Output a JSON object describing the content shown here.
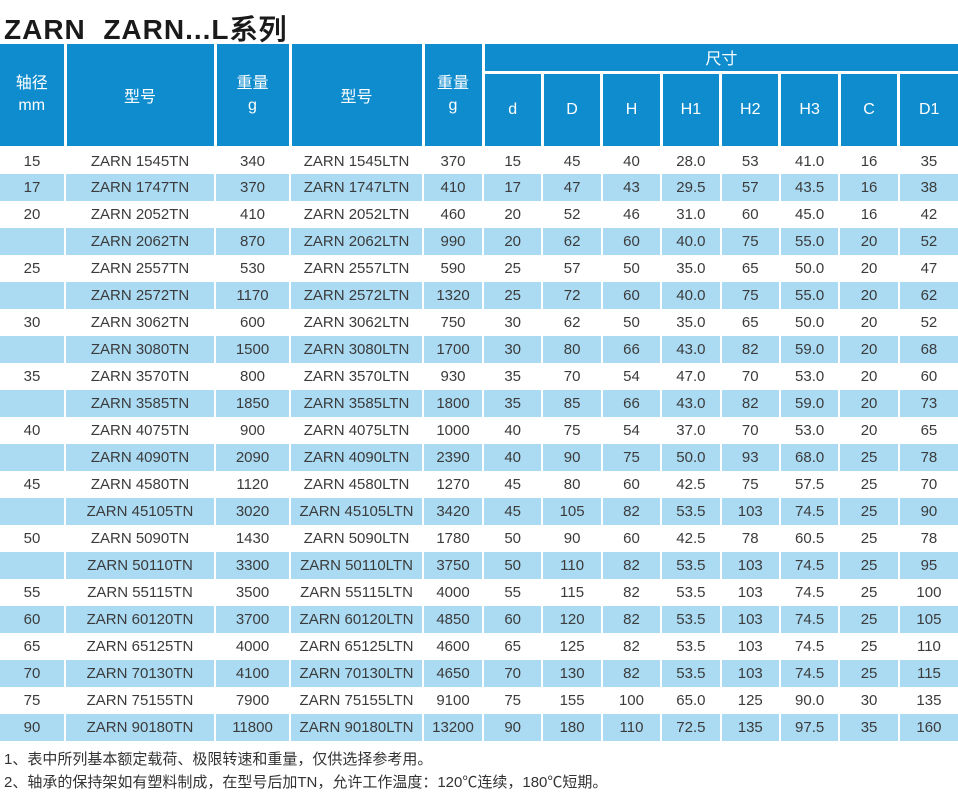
{
  "page": {
    "title": "ZARN  ZARN...L系列"
  },
  "colors": {
    "header_blue": "#0f8cce",
    "stripe_blue": "#abdbf3",
    "row_white": "#ffffff",
    "body_text": "#3b3b3b"
  },
  "table": {
    "headers": {
      "shaft": "轴径",
      "shaft_unit": "mm",
      "model_tn": "型号",
      "weight_tn": "重量",
      "weight_tn_unit": "g",
      "model_ltn": "型号",
      "weight_ltn": "重量",
      "weight_ltn_unit": "g",
      "dims_group": "尺寸",
      "dims": [
        "d",
        "D",
        "H",
        "H1",
        "H2",
        "H3",
        "C",
        "D1"
      ]
    },
    "column_keys": [
      "shaft-mm",
      "model-tn",
      "weight-tn",
      "model-ltn",
      "weight-ltn",
      "dim-d",
      "dim-D",
      "dim-H",
      "dim-H1",
      "dim-H2",
      "dim-H3",
      "dim-C",
      "dim-D1"
    ],
    "rows": [
      [
        "15",
        "ZARN 1545TN",
        "340",
        "ZARN 1545LTN",
        "370",
        "15",
        "45",
        "40",
        "28.0",
        "53",
        "41.0",
        "16",
        "35"
      ],
      [
        "17",
        "ZARN 1747TN",
        "370",
        "ZARN 1747LTN",
        "410",
        "17",
        "47",
        "43",
        "29.5",
        "57",
        "43.5",
        "16",
        "38"
      ],
      [
        "20",
        "ZARN 2052TN",
        "410",
        "ZARN 2052LTN",
        "460",
        "20",
        "52",
        "46",
        "31.0",
        "60",
        "45.0",
        "16",
        "42"
      ],
      [
        "",
        "ZARN 2062TN",
        "870",
        "ZARN 2062LTN",
        "990",
        "20",
        "62",
        "60",
        "40.0",
        "75",
        "55.0",
        "20",
        "52"
      ],
      [
        "25",
        "ZARN 2557TN",
        "530",
        "ZARN 2557LTN",
        "590",
        "25",
        "57",
        "50",
        "35.0",
        "65",
        "50.0",
        "20",
        "47"
      ],
      [
        "",
        "ZARN 2572TN",
        "1170",
        "ZARN 2572LTN",
        "1320",
        "25",
        "72",
        "60",
        "40.0",
        "75",
        "55.0",
        "20",
        "62"
      ],
      [
        "30",
        "ZARN 3062TN",
        "600",
        "ZARN 3062LTN",
        "750",
        "30",
        "62",
        "50",
        "35.0",
        "65",
        "50.0",
        "20",
        "52"
      ],
      [
        "",
        "ZARN 3080TN",
        "1500",
        "ZARN 3080LTN",
        "1700",
        "30",
        "80",
        "66",
        "43.0",
        "82",
        "59.0",
        "20",
        "68"
      ],
      [
        "35",
        "ZARN 3570TN",
        "800",
        "ZARN 3570LTN",
        "930",
        "35",
        "70",
        "54",
        "47.0",
        "70",
        "53.0",
        "20",
        "60"
      ],
      [
        "",
        "ZARN 3585TN",
        "1850",
        "ZARN 3585LTN",
        "1800",
        "35",
        "85",
        "66",
        "43.0",
        "82",
        "59.0",
        "20",
        "73"
      ],
      [
        "40",
        "ZARN 4075TN",
        "900",
        "ZARN 4075LTN",
        "1000",
        "40",
        "75",
        "54",
        "37.0",
        "70",
        "53.0",
        "20",
        "65"
      ],
      [
        "",
        "ZARN 4090TN",
        "2090",
        "ZARN 4090LTN",
        "2390",
        "40",
        "90",
        "75",
        "50.0",
        "93",
        "68.0",
        "25",
        "78"
      ],
      [
        "45",
        "ZARN 4580TN",
        "1120",
        "ZARN 4580LTN",
        "1270",
        "45",
        "80",
        "60",
        "42.5",
        "75",
        "57.5",
        "25",
        "70"
      ],
      [
        "",
        "ZARN 45105TN",
        "3020",
        "ZARN 45105LTN",
        "3420",
        "45",
        "105",
        "82",
        "53.5",
        "103",
        "74.5",
        "25",
        "90"
      ],
      [
        "50",
        "ZARN 5090TN",
        "1430",
        "ZARN 5090LTN",
        "1780",
        "50",
        "90",
        "60",
        "42.5",
        "78",
        "60.5",
        "25",
        "78"
      ],
      [
        "",
        "ZARN 50110TN",
        "3300",
        "ZARN 50110LTN",
        "3750",
        "50",
        "110",
        "82",
        "53.5",
        "103",
        "74.5",
        "25",
        "95"
      ],
      [
        "55",
        "ZARN 55115TN",
        "3500",
        "ZARN 55115LTN",
        "4000",
        "55",
        "115",
        "82",
        "53.5",
        "103",
        "74.5",
        "25",
        "100"
      ],
      [
        "60",
        "ZARN 60120TN",
        "3700",
        "ZARN 60120LTN",
        "4850",
        "60",
        "120",
        "82",
        "53.5",
        "103",
        "74.5",
        "25",
        "105"
      ],
      [
        "65",
        "ZARN 65125TN",
        "4000",
        "ZARN 65125LTN",
        "4600",
        "65",
        "125",
        "82",
        "53.5",
        "103",
        "74.5",
        "25",
        "110"
      ],
      [
        "70",
        "ZARN 70130TN",
        "4100",
        "ZARN 70130LTN",
        "4650",
        "70",
        "130",
        "82",
        "53.5",
        "103",
        "74.5",
        "25",
        "115"
      ],
      [
        "75",
        "ZARN 75155TN",
        "7900",
        "ZARN 75155LTN",
        "9100",
        "75",
        "155",
        "100",
        "65.0",
        "125",
        "90.0",
        "30",
        "135"
      ],
      [
        "90",
        "ZARN 90180TN",
        "11800",
        "ZARN 90180LTN",
        "13200",
        "90",
        "180",
        "110",
        "72.5",
        "135",
        "97.5",
        "35",
        "160"
      ]
    ]
  },
  "notes": [
    "1、表中所列基本额定载荷、极限转速和重量，仅供选择参考用。",
    "2、轴承的保持架如有塑料制成，在型号后加TN，允许工作温度：120℃连续，180℃短期。"
  ]
}
